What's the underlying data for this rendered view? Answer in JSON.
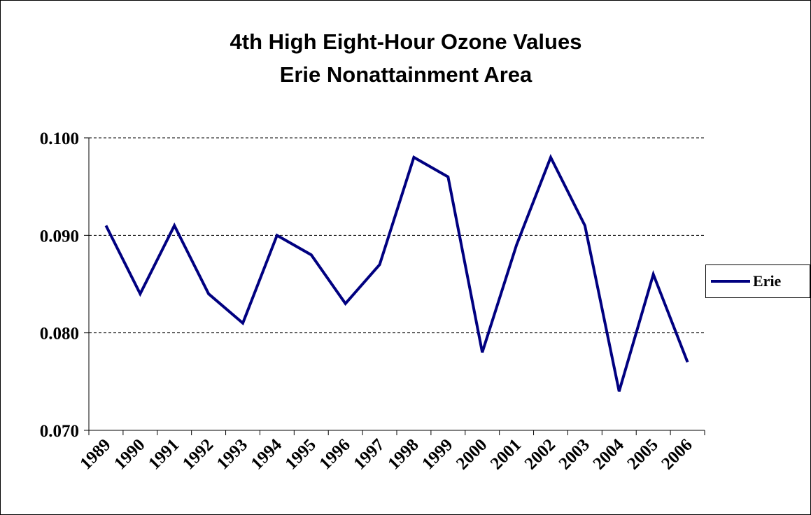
{
  "chart_data": {
    "type": "line",
    "title": "4th High Eight-Hour Ozone Values",
    "subtitle": "Erie Nonattainment Area",
    "categories": [
      "1989",
      "1990",
      "1991",
      "1992",
      "1993",
      "1994",
      "1995",
      "1996",
      "1997",
      "1998",
      "1999",
      "2000",
      "2001",
      "2002",
      "2003",
      "2004",
      "2005",
      "2006"
    ],
    "series": [
      {
        "name": "Erie",
        "color": "#000080",
        "values": [
          0.091,
          0.084,
          0.091,
          0.084,
          0.081,
          0.09,
          0.088,
          0.083,
          0.087,
          0.098,
          0.096,
          0.078,
          0.089,
          0.098,
          0.091,
          0.074,
          0.086,
          0.077
        ]
      }
    ],
    "ylim": [
      0.07,
      0.1
    ],
    "yticks": [
      {
        "value": 0.07,
        "label": "0.070"
      },
      {
        "value": 0.08,
        "label": "0.080"
      },
      {
        "value": 0.09,
        "label": "0.090"
      },
      {
        "value": 0.1,
        "label": "0.100"
      }
    ],
    "grid": true,
    "legend": "right"
  }
}
